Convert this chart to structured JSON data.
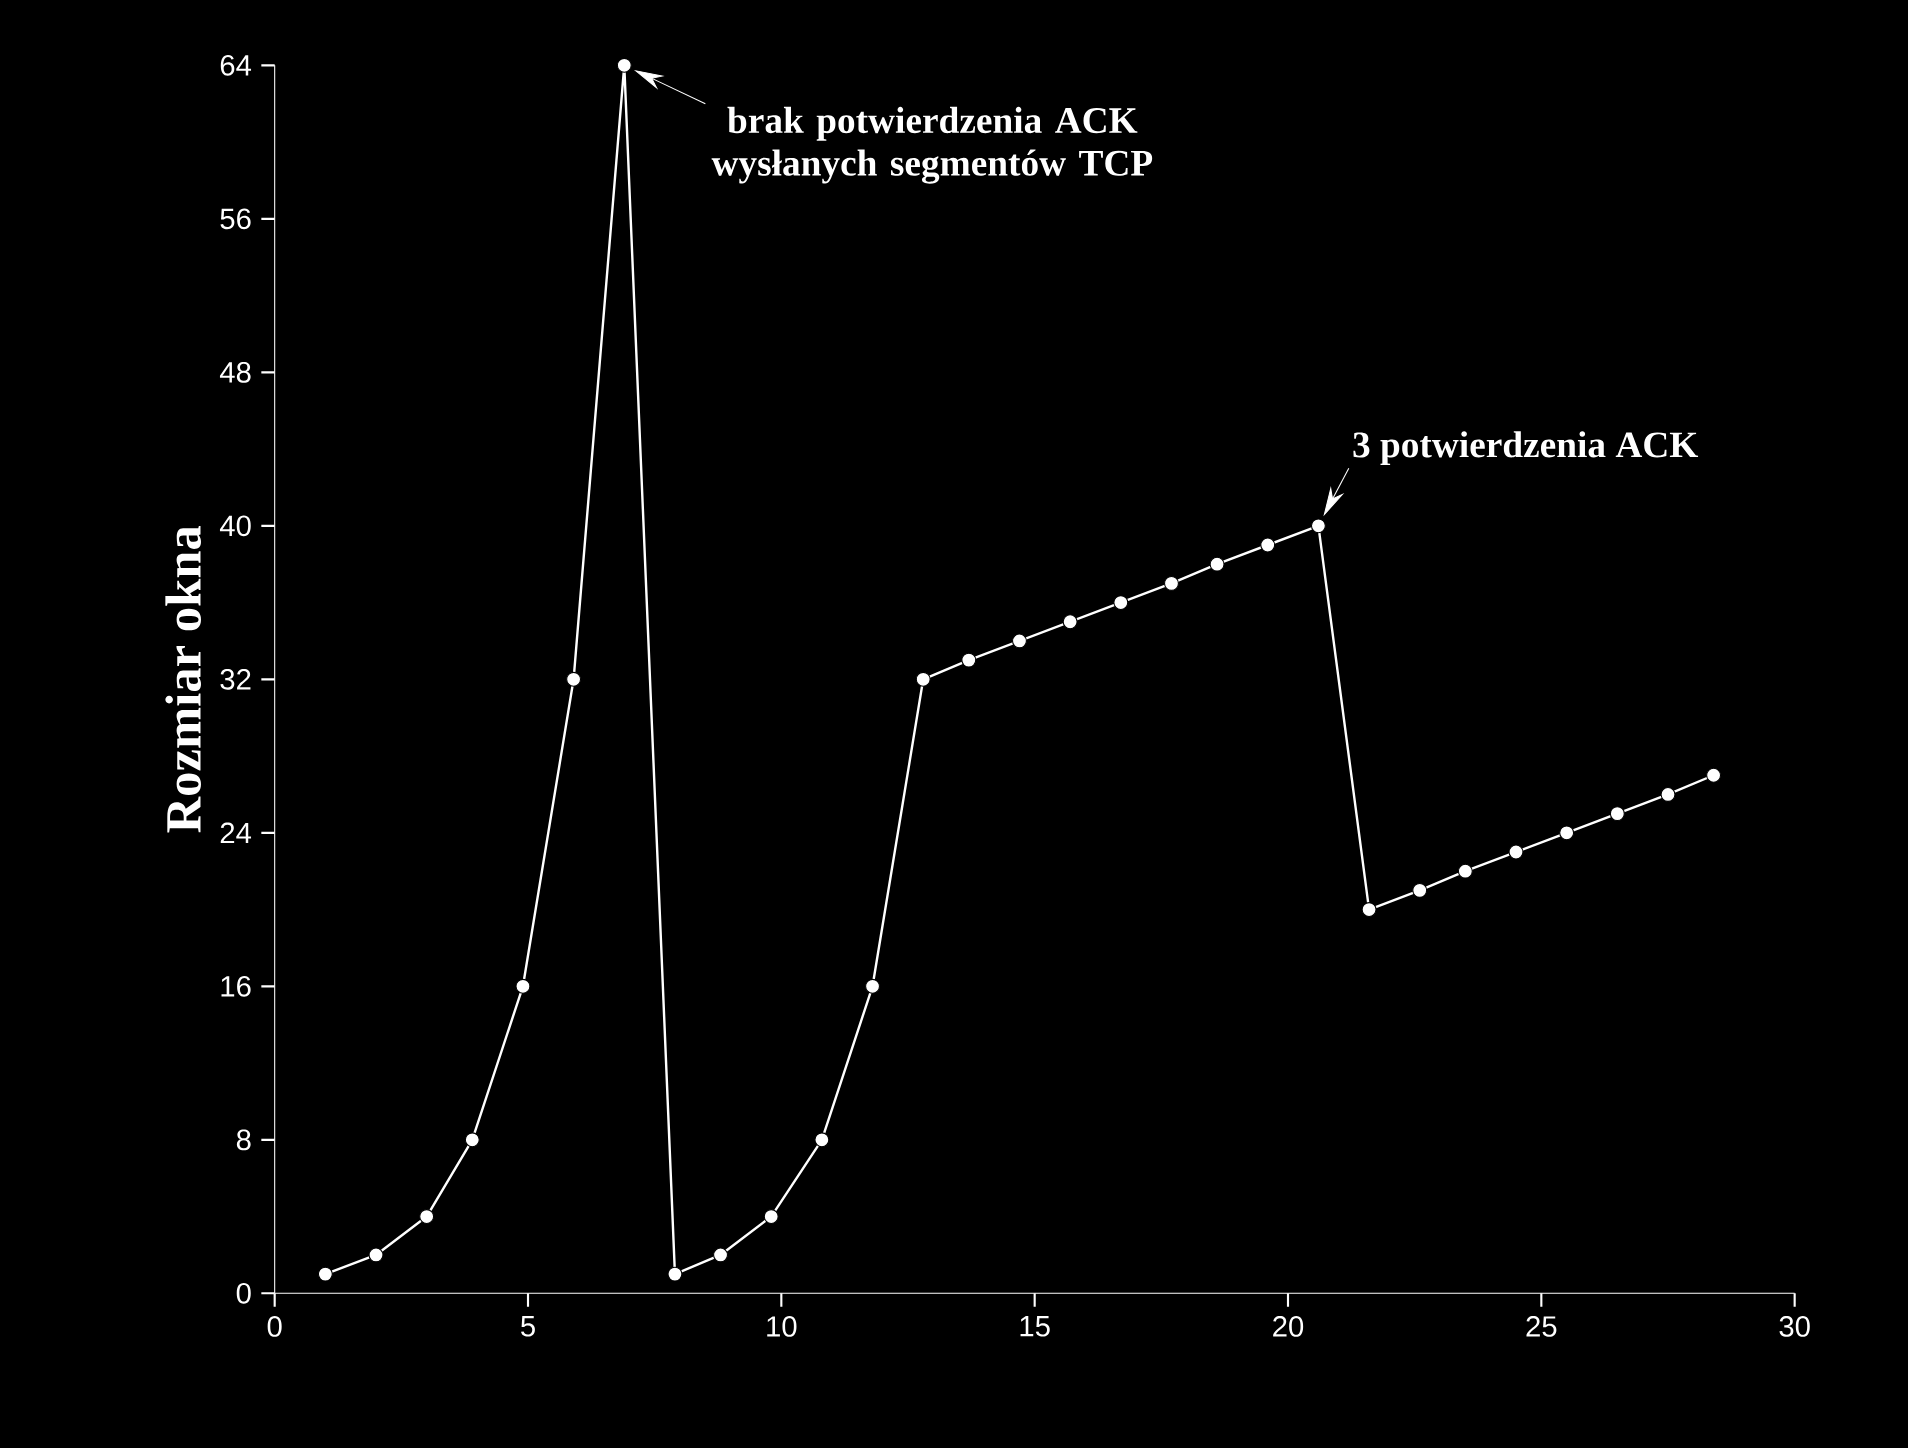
{
  "chart_data": {
    "type": "line",
    "ylabel": "Rozmiar okna",
    "x": [
      1.0,
      2.0,
      3.0,
      3.9,
      4.9,
      5.9,
      6.9,
      7.9,
      8.8,
      9.8,
      10.8,
      11.8,
      12.8,
      13.7,
      14.7,
      15.7,
      16.7,
      17.7,
      18.6,
      19.6,
      20.6,
      21.6,
      22.6,
      23.5,
      24.5,
      25.5,
      26.5,
      27.5,
      28.4
    ],
    "values": [
      1,
      2,
      4,
      8,
      16,
      32,
      64,
      1,
      2,
      4,
      8,
      16,
      32,
      33,
      34,
      35,
      36,
      37,
      38,
      39,
      40,
      20,
      21,
      22,
      23,
      24,
      25,
      26,
      27
    ],
    "color": "#ffffff",
    "marker": "circle",
    "line_style": "solid",
    "grid": false,
    "xlim": [
      0,
      30
    ],
    "xticks": [
      0,
      5,
      10,
      15,
      20,
      25,
      30
    ],
    "ylim": [
      0,
      64
    ],
    "yticks": [
      0,
      8,
      16,
      24,
      32,
      40,
      48,
      56,
      64
    ],
    "annotations": [
      {
        "text": "brak potwierdzenia ACK wysłanych segmentów TCP",
        "x": 6.9,
        "y": 64
      },
      {
        "text": "3  potwierdzenia ACK",
        "x": 20.6,
        "y": 40
      }
    ]
  }
}
